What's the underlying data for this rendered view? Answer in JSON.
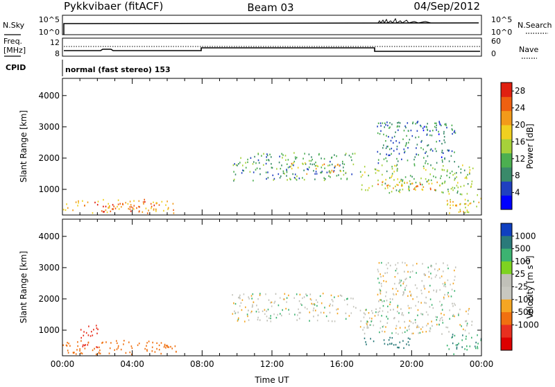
{
  "header": {
    "station": "Pykkvibaer (fitACF)",
    "beam": "Beam 03",
    "date": "04/Sep/2012"
  },
  "top_strips": {
    "nsky_label": "N.Sky",
    "nsky_ticks": [
      "10^5",
      "10^0"
    ],
    "nsearch_label": "N.Search",
    "nsearch_ticks": [
      "10^5",
      "10^0"
    ],
    "freq_label": "Freq.",
    "freq_unit": "[MHz]",
    "freq_ticks": [
      "12",
      "8"
    ],
    "nave_label": "Nave",
    "nave_ticks": [
      "60",
      "0"
    ],
    "cpid_label": "CPID",
    "cpid_text": "normal (fast stereo) 153"
  },
  "colors": {
    "power_scale": [
      "#0000ff",
      "#2040c0",
      "#3a8a6a",
      "#4caf50",
      "#a6d13a",
      "#f0d020",
      "#f29a1a",
      "#ee6010",
      "#e02010"
    ],
    "velocity_scale": [
      "#1040c0",
      "#2a7a7a",
      "#3cb371",
      "#7ed321",
      "#c0c0b8",
      "#c8c8c0",
      "#f5a623",
      "#f07010",
      "#e83020",
      "#dd0000"
    ],
    "ground_scatter": "#c0c0b8"
  },
  "chart_data": [
    {
      "type": "heatmap",
      "panel": "power",
      "xlabel": "",
      "ylabel": "Slant Range [km]",
      "xlim": [
        0,
        24
      ],
      "ylim": [
        180,
        4550
      ],
      "x_ticks": [
        "00:00",
        "04:00",
        "08:00",
        "12:00",
        "16:00",
        "20:00",
        "00:00"
      ],
      "y_ticks": [
        1000,
        2000,
        3000,
        4000
      ],
      "colorbar": {
        "label": "Power [dB]",
        "ticks": [
          "4",
          "8",
          "12",
          "16",
          "20",
          "24",
          "28"
        ],
        "range": [
          0,
          30
        ]
      },
      "scatter_regions": [
        {
          "t0": 0.0,
          "t1": 6.5,
          "r0": 250,
          "r1": 700,
          "power": 22
        },
        {
          "t0": 2.2,
          "t1": 4.2,
          "r0": 300,
          "r1": 550,
          "power": 27
        },
        {
          "t0": 9.7,
          "t1": 16.8,
          "r0": 1300,
          "r1": 2200,
          "power": 10
        },
        {
          "t0": 13.0,
          "t1": 16.0,
          "r0": 1500,
          "r1": 1900,
          "power": 20
        },
        {
          "t0": 17.0,
          "t1": 23.5,
          "r0": 900,
          "r1": 1800,
          "power": 14
        },
        {
          "t0": 18.0,
          "t1": 21.5,
          "r0": 1000,
          "r1": 1300,
          "power": 23
        },
        {
          "t0": 18.0,
          "t1": 22.5,
          "r0": 1800,
          "r1": 3200,
          "power": 8
        },
        {
          "t0": 22.0,
          "t1": 24.0,
          "r0": 250,
          "r1": 900,
          "power": 18
        }
      ]
    },
    {
      "type": "heatmap",
      "panel": "velocity",
      "xlabel": "Time UT",
      "ylabel": "Slant Range [km]",
      "xlim": [
        0,
        24
      ],
      "ylim": [
        180,
        4550
      ],
      "x_ticks": [
        "00:00",
        "04:00",
        "08:00",
        "12:00",
        "16:00",
        "20:00",
        "00:00"
      ],
      "y_ticks": [
        1000,
        2000,
        3000,
        4000
      ],
      "colorbar": {
        "label": "Velocity [m s",
        "label_superscript": "-1",
        "label_close": "]",
        "ticks": [
          "1000",
          "500",
          "100",
          "25",
          "-25",
          "-100",
          "-500",
          "-1000"
        ]
      },
      "scatter_regions": [
        {
          "t0": 0.0,
          "t1": 6.5,
          "r0": 250,
          "r1": 700,
          "velocity": -300
        },
        {
          "t0": 1.0,
          "t1": 2.0,
          "r0": 400,
          "r1": 1200,
          "velocity": -600
        },
        {
          "t0": 9.7,
          "t1": 16.8,
          "r0": 1300,
          "r1": 2200,
          "velocity": 0
        },
        {
          "t0": 17.0,
          "t1": 23.5,
          "r0": 900,
          "r1": 1800,
          "velocity": 0
        },
        {
          "t0": 17.0,
          "t1": 20.0,
          "r0": 450,
          "r1": 800,
          "velocity": 300
        },
        {
          "t0": 18.0,
          "t1": 22.5,
          "r0": 1800,
          "r1": 3200,
          "velocity": 0
        },
        {
          "t0": 22.0,
          "t1": 24.0,
          "r0": 250,
          "r1": 900,
          "velocity": 80
        }
      ]
    }
  ]
}
